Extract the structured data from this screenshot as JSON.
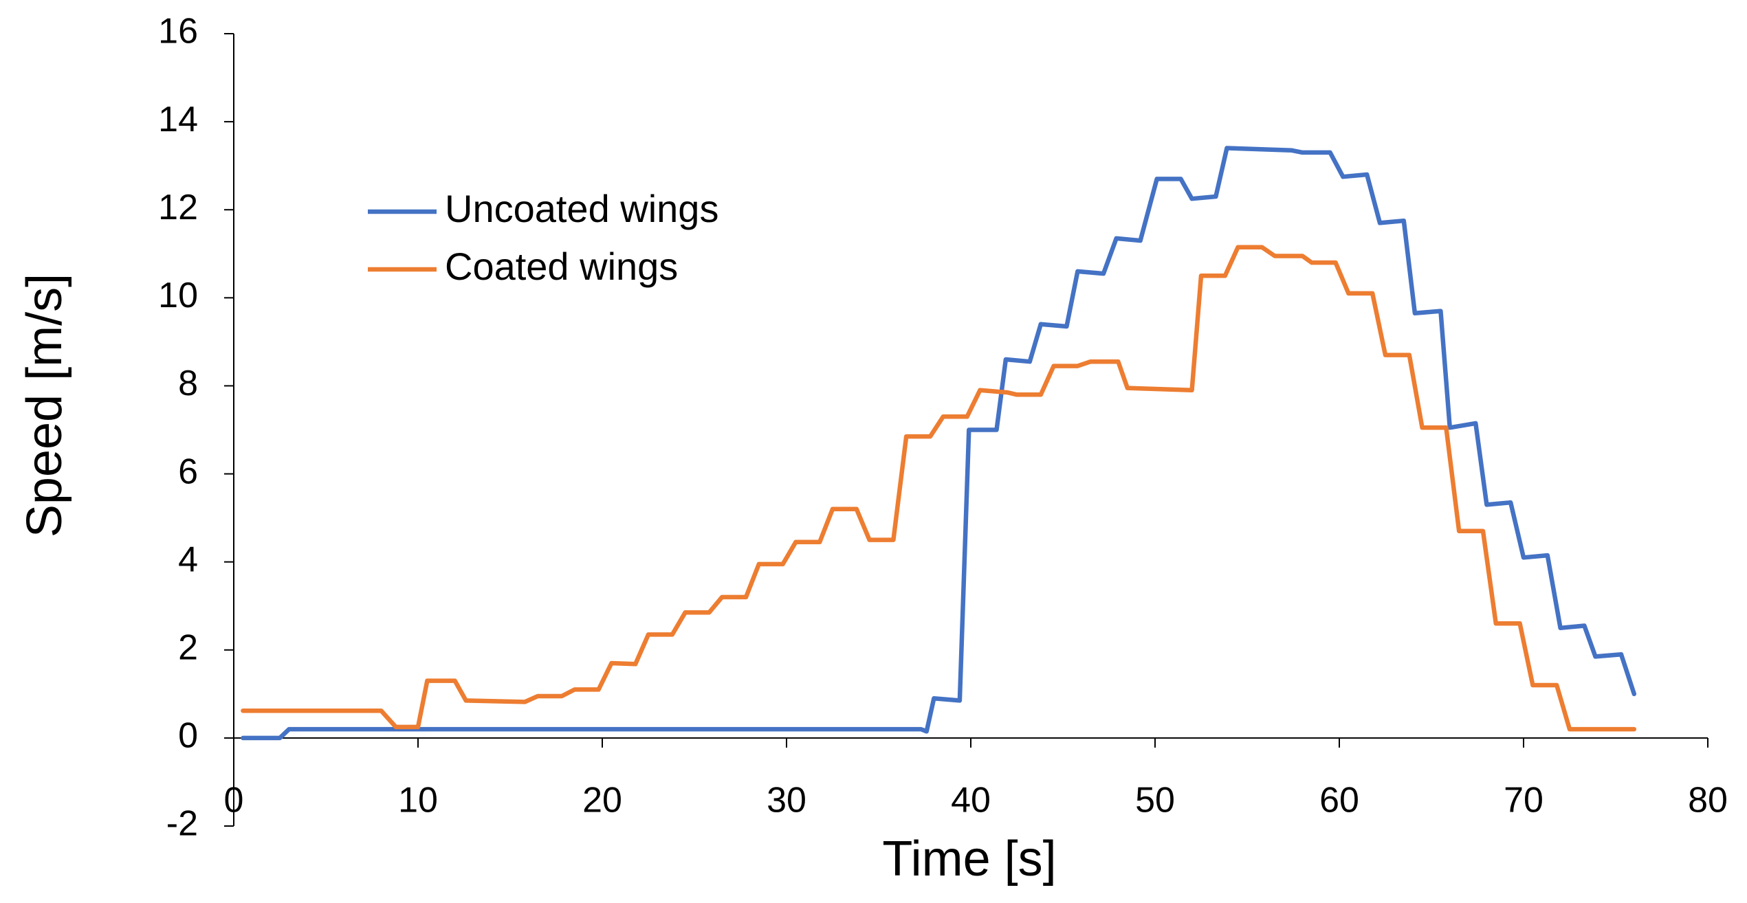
{
  "chart_data": {
    "type": "line",
    "x_label": "Time [s]",
    "y_label": "Speed [m/s]",
    "xlim": [
      0,
      80
    ],
    "xticks": [
      0,
      10,
      20,
      30,
      40,
      50,
      60,
      70,
      80
    ],
    "ylim": [
      -2,
      16
    ],
    "yticks": [
      -2,
      0,
      2,
      4,
      6,
      8,
      10,
      12,
      14,
      16
    ],
    "grid": false,
    "legend": "upper-left",
    "series": [
      {
        "name": "Uncoated wings",
        "color": "#4472c4",
        "x": [
          0.5,
          2.5,
          3,
          37.3,
          37.6,
          38,
          39.4,
          39.9,
          41.4,
          41.9,
          43.2,
          43.8,
          45.2,
          45.8,
          47.2,
          47.9,
          49.2,
          50.1,
          51.4,
          52,
          53.3,
          53.9,
          57.4,
          58,
          59.5,
          60.2,
          61.5,
          62.2,
          63.5,
          64.1,
          65.5,
          66,
          67.4,
          68,
          69.3,
          70,
          71.3,
          72,
          73.3,
          73.9,
          75.3,
          76
        ],
        "values": [
          0,
          0,
          0.2,
          0.2,
          0.15,
          0.9,
          0.85,
          7.0,
          7.0,
          8.6,
          8.55,
          9.4,
          9.35,
          10.6,
          10.55,
          11.35,
          11.3,
          12.7,
          12.7,
          12.25,
          12.3,
          13.4,
          13.35,
          13.3,
          13.3,
          12.75,
          12.8,
          11.7,
          11.75,
          9.65,
          9.7,
          7.05,
          7.15,
          5.3,
          5.35,
          4.1,
          4.15,
          2.5,
          2.55,
          1.85,
          1.9,
          1.0
        ]
      },
      {
        "name": "Coated wings",
        "color": "#ed7d31",
        "x": [
          0.5,
          8,
          8.8,
          10,
          10.5,
          12,
          12.6,
          15.8,
          16.5,
          17.8,
          18.5,
          19.8,
          20.5,
          21.8,
          22.5,
          23.8,
          24.5,
          25.8,
          26.5,
          27.8,
          28.5,
          29.8,
          30.5,
          31.8,
          32.5,
          33.8,
          34.5,
          35.8,
          36.5,
          37.8,
          38.5,
          39.8,
          40.5,
          42,
          42.5,
          43.8,
          44.5,
          45.8,
          46.5,
          48,
          48.5,
          52,
          52.5,
          53.8,
          54.5,
          55.8,
          56.5,
          58,
          58.5,
          59.8,
          60.5,
          61.8,
          62.5,
          63.8,
          64.5,
          65.8,
          66.5,
          67.8,
          68.5,
          69.8,
          70.5,
          71.8,
          72.5,
          76
        ],
        "values": [
          0.62,
          0.62,
          0.25,
          0.25,
          1.3,
          1.3,
          0.85,
          0.82,
          0.95,
          0.95,
          1.1,
          1.1,
          1.7,
          1.68,
          2.35,
          2.35,
          2.85,
          2.85,
          3.2,
          3.2,
          3.95,
          3.95,
          4.45,
          4.45,
          5.2,
          5.2,
          4.5,
          4.5,
          6.85,
          6.85,
          7.3,
          7.3,
          7.9,
          7.85,
          7.8,
          7.8,
          8.45,
          8.45,
          8.55,
          8.55,
          7.95,
          7.9,
          10.5,
          10.5,
          11.15,
          11.15,
          10.95,
          10.95,
          10.8,
          10.8,
          10.1,
          10.1,
          8.7,
          8.7,
          7.05,
          7.05,
          4.7,
          4.7,
          2.6,
          2.6,
          1.2,
          1.2,
          0.2,
          0.2
        ]
      }
    ]
  }
}
